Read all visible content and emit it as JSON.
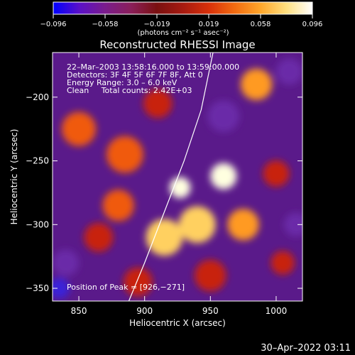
{
  "colorbar": {
    "ticks": [
      "−0.096",
      "−0.058",
      "−0.019",
      "0.019",
      "0.058",
      "0.096"
    ],
    "units_label": "(photons cm⁻² s⁻¹ asec⁻²)",
    "colors": [
      "#0000ff",
      "#5a10c8",
      "#7a1c8c",
      "#8a1f5a",
      "#7a1010",
      "#a61a10",
      "#d8300a",
      "#f26b10",
      "#ffa62a",
      "#ffe080",
      "#ffffff"
    ]
  },
  "title": "Reconstructed RHESSI Image",
  "annotations": [
    "22–Mar–2003 13:58:16.000 to 13:59:00.000",
    "Detectors: 3F 4F 5F 6F 7F 8F, Att 0",
    "Energy Range: 3.0 – 6.0 keV",
    "Clean     Total counts: 2.42E+03"
  ],
  "peak_label": "Position of Peak = [926,−271]",
  "x_axis": {
    "label": "Heliocentric X (arcsec)",
    "range": [
      830,
      1020
    ],
    "ticks": [
      {
        "value": 850,
        "label": "850"
      },
      {
        "value": 900,
        "label": "900"
      },
      {
        "value": 950,
        "label": "950"
      },
      {
        "value": 1000,
        "label": "1000"
      }
    ]
  },
  "y_axis": {
    "label": "Heliocentric Y (arcsec)",
    "range": [
      -360,
      -165
    ],
    "ticks": [
      {
        "value": -200,
        "label": "−200"
      },
      {
        "value": -250,
        "label": "−250"
      },
      {
        "value": -300,
        "label": "−300"
      },
      {
        "value": -350,
        "label": "−350"
      }
    ]
  },
  "limb_curve": [
    [
      888,
      -360
    ],
    [
      900,
      -330
    ],
    [
      915,
      -290
    ],
    [
      930,
      -250
    ],
    [
      943,
      -210
    ],
    [
      952,
      -165
    ]
  ],
  "emission_blobs": [
    {
      "x": 927,
      "y": -271,
      "r": 8,
      "level": 1.0
    },
    {
      "x": 960,
      "y": -262,
      "r": 10,
      "level": 0.9
    },
    {
      "x": 940,
      "y": -300,
      "r": 14,
      "level": 0.8
    },
    {
      "x": 915,
      "y": -310,
      "r": 14,
      "level": 0.75
    },
    {
      "x": 975,
      "y": -300,
      "r": 12,
      "level": 0.6
    },
    {
      "x": 985,
      "y": -190,
      "r": 12,
      "level": 0.6
    },
    {
      "x": 850,
      "y": -225,
      "r": 13,
      "level": 0.45
    },
    {
      "x": 885,
      "y": -245,
      "r": 14,
      "level": 0.5
    },
    {
      "x": 880,
      "y": -285,
      "r": 12,
      "level": 0.45
    },
    {
      "x": 865,
      "y": -310,
      "r": 11,
      "level": 0.35
    },
    {
      "x": 950,
      "y": -340,
      "r": 12,
      "level": 0.35
    },
    {
      "x": 1000,
      "y": -260,
      "r": 10,
      "level": 0.35
    },
    {
      "x": 910,
      "y": -205,
      "r": 11,
      "level": 0.3
    },
    {
      "x": 1005,
      "y": -330,
      "r": 9,
      "level": 0.3
    },
    {
      "x": 895,
      "y": -345,
      "r": 11,
      "level": 0.3
    },
    {
      "x": 840,
      "y": -330,
      "r": 10,
      "level": -0.3
    },
    {
      "x": 835,
      "y": -350,
      "r": 8,
      "level": -0.5
    },
    {
      "x": 1010,
      "y": -180,
      "r": 10,
      "level": -0.3
    },
    {
      "x": 960,
      "y": -215,
      "r": 12,
      "level": -0.25
    },
    {
      "x": 1015,
      "y": -300,
      "r": 9,
      "level": -0.2
    }
  ],
  "timestamp": "30–Apr–2022 03:11"
}
